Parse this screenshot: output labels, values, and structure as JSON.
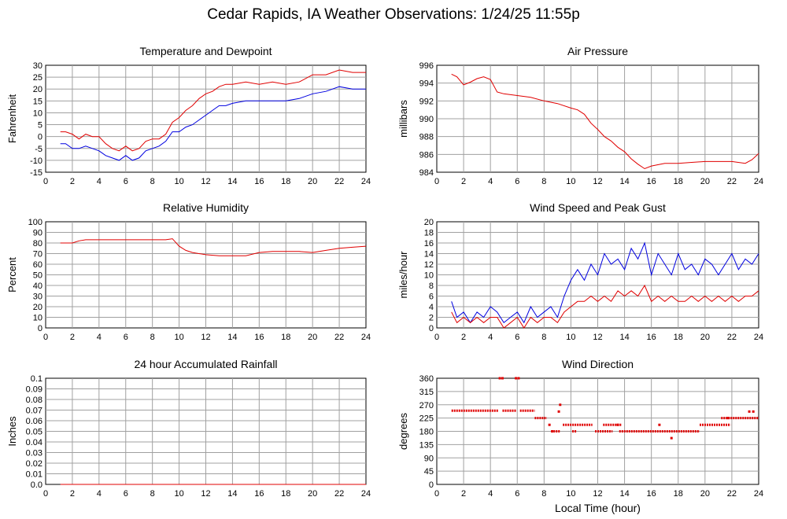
{
  "page": {
    "title": "Cedar Rapids, IA Weather Observations: 1/24/25 11:55p"
  },
  "chart_data": [
    {
      "type": "line",
      "title": "Temperature and Dewpoint",
      "ylabel": "Fahrenheit",
      "xlabel": "",
      "xlim": [
        0,
        24
      ],
      "ylim": [
        -15,
        30
      ],
      "xticks": [
        0,
        2,
        4,
        6,
        8,
        10,
        12,
        14,
        16,
        18,
        20,
        22,
        24
      ],
      "yticks": [
        -15,
        -10,
        -5,
        0,
        5,
        10,
        15,
        20,
        25,
        30
      ],
      "grid": true,
      "series": [
        {
          "color": "#e00000",
          "x": [
            1.1,
            1.5,
            2.0,
            2.5,
            3.0,
            3.5,
            4.0,
            4.5,
            5.0,
            5.5,
            6.0,
            6.5,
            7.0,
            7.5,
            8.0,
            8.5,
            9.0,
            9.5,
            10.0,
            10.5,
            11.0,
            11.5,
            12.0,
            12.5,
            13.0,
            13.5,
            14.0,
            15.0,
            16.0,
            17.0,
            18.0,
            19.0,
            20.0,
            21.0,
            22.0,
            23.0,
            24.0
          ],
          "y": [
            2,
            2,
            1,
            -1,
            1,
            0,
            0,
            -3,
            -5,
            -6,
            -4,
            -6,
            -5,
            -2,
            -1,
            -1,
            1,
            6,
            8,
            11,
            13,
            16,
            18,
            19,
            21,
            22,
            22,
            23,
            22,
            23,
            22,
            23,
            26,
            26,
            28,
            27,
            27
          ]
        },
        {
          "color": "#0000e0",
          "x": [
            1.1,
            1.5,
            2.0,
            2.5,
            3.0,
            3.5,
            4.0,
            4.5,
            5.0,
            5.5,
            6.0,
            6.5,
            7.0,
            7.5,
            8.0,
            8.5,
            9.0,
            9.5,
            10.0,
            10.5,
            11.0,
            11.5,
            12.0,
            12.5,
            13.0,
            13.5,
            14.0,
            15.0,
            16.0,
            17.0,
            18.0,
            19.0,
            20.0,
            21.0,
            22.0,
            23.0,
            24.0
          ],
          "y": [
            -3,
            -3,
            -5,
            -5,
            -4,
            -5,
            -6,
            -8,
            -9,
            -10,
            -8,
            -10,
            -9,
            -6,
            -5,
            -4,
            -2,
            2,
            2,
            4,
            5,
            7,
            9,
            11,
            13,
            13,
            14,
            15,
            15,
            15,
            15,
            16,
            18,
            19,
            21,
            20,
            20
          ]
        }
      ]
    },
    {
      "type": "line",
      "title": "Air Pressure",
      "ylabel": "millibars",
      "xlabel": "",
      "xlim": [
        0,
        24
      ],
      "ylim": [
        984,
        996
      ],
      "xticks": [
        0,
        2,
        4,
        6,
        8,
        10,
        12,
        14,
        16,
        18,
        20,
        22,
        24
      ],
      "yticks": [
        984,
        986,
        988,
        990,
        992,
        994,
        996
      ],
      "grid": true,
      "series": [
        {
          "color": "#e00000",
          "x": [
            1.1,
            1.5,
            2.0,
            2.5,
            3.0,
            3.5,
            4.0,
            4.5,
            5.0,
            6.0,
            7.0,
            8.0,
            9.0,
            10.0,
            10.5,
            11.0,
            11.5,
            12.0,
            12.5,
            13.0,
            13.5,
            14.0,
            14.5,
            15.0,
            15.5,
            16.0,
            17.0,
            18.0,
            19.0,
            20.0,
            21.0,
            22.0,
            23.0,
            23.5,
            24.0
          ],
          "y": [
            995.0,
            994.7,
            993.8,
            994.1,
            994.5,
            994.7,
            994.4,
            993.0,
            992.8,
            992.6,
            992.4,
            992.0,
            991.7,
            991.2,
            991.0,
            990.5,
            989.5,
            988.8,
            988.0,
            987.5,
            986.8,
            986.3,
            985.5,
            984.9,
            984.4,
            984.7,
            985.0,
            985.0,
            985.1,
            985.2,
            985.2,
            985.2,
            985.0,
            985.4,
            986.1
          ]
        }
      ]
    },
    {
      "type": "line",
      "title": "Relative Humidity",
      "ylabel": "Percent",
      "xlabel": "",
      "xlim": [
        0,
        24
      ],
      "ylim": [
        0,
        100
      ],
      "xticks": [
        0,
        2,
        4,
        6,
        8,
        10,
        12,
        14,
        16,
        18,
        20,
        22,
        24
      ],
      "yticks": [
        0,
        10,
        20,
        30,
        40,
        50,
        60,
        70,
        80,
        90,
        100
      ],
      "grid": true,
      "series": [
        {
          "color": "#e00000",
          "x": [
            1.1,
            2.0,
            2.5,
            3.0,
            4.0,
            5.0,
            6.0,
            7.0,
            8.0,
            9.0,
            9.5,
            10.0,
            10.5,
            11.0,
            12.0,
            13.0,
            14.0,
            15.0,
            16.0,
            17.0,
            18.0,
            19.0,
            20.0,
            21.0,
            22.0,
            23.0,
            24.0
          ],
          "y": [
            80,
            80,
            82,
            83,
            83,
            83,
            83,
            83,
            83,
            83,
            84,
            77,
            73,
            71,
            69,
            68,
            68,
            68,
            71,
            72,
            72,
            72,
            71,
            73,
            75,
            76,
            77
          ]
        }
      ]
    },
    {
      "type": "line",
      "title": "Wind Speed and Peak Gust",
      "ylabel": "miles/hour",
      "xlabel": "",
      "xlim": [
        0,
        24
      ],
      "ylim": [
        0,
        20
      ],
      "xticks": [
        0,
        2,
        4,
        6,
        8,
        10,
        12,
        14,
        16,
        18,
        20,
        22,
        24
      ],
      "yticks": [
        0,
        2,
        4,
        6,
        8,
        10,
        12,
        14,
        16,
        18,
        20
      ],
      "grid": true,
      "series": [
        {
          "color": "#0000e0",
          "x": [
            1.1,
            1.5,
            2.0,
            2.5,
            3.0,
            3.5,
            4.0,
            4.5,
            5.0,
            5.5,
            6.0,
            6.5,
            7.0,
            7.5,
            8.0,
            8.5,
            9.0,
            9.5,
            10.0,
            10.5,
            11.0,
            11.5,
            12.0,
            12.5,
            13.0,
            13.5,
            14.0,
            14.5,
            15.0,
            15.5,
            16.0,
            16.5,
            17.0,
            17.5,
            18.0,
            18.5,
            19.0,
            19.5,
            20.0,
            20.5,
            21.0,
            21.5,
            22.0,
            22.5,
            23.0,
            23.5,
            24.0
          ],
          "y": [
            5,
            2,
            3,
            1,
            3,
            2,
            4,
            3,
            1,
            2,
            3,
            1,
            4,
            2,
            3,
            4,
            2,
            6,
            9,
            11,
            9,
            12,
            10,
            14,
            12,
            13,
            11,
            15,
            13,
            16,
            10,
            14,
            12,
            10,
            14,
            11,
            12,
            10,
            13,
            12,
            10,
            12,
            14,
            11,
            13,
            12,
            14
          ]
        },
        {
          "color": "#e00000",
          "x": [
            1.1,
            1.5,
            2.0,
            2.5,
            3.0,
            3.5,
            4.0,
            4.5,
            5.0,
            5.5,
            6.0,
            6.5,
            7.0,
            7.5,
            8.0,
            8.5,
            9.0,
            9.5,
            10.0,
            10.5,
            11.0,
            11.5,
            12.0,
            12.5,
            13.0,
            13.5,
            14.0,
            14.5,
            15.0,
            15.5,
            16.0,
            16.5,
            17.0,
            17.5,
            18.0,
            18.5,
            19.0,
            19.5,
            20.0,
            20.5,
            21.0,
            21.5,
            22.0,
            22.5,
            23.0,
            23.5,
            24.0
          ],
          "y": [
            3,
            1,
            2,
            1,
            2,
            1,
            2,
            2,
            0,
            1,
            2,
            0,
            2,
            1,
            2,
            2,
            1,
            3,
            4,
            5,
            5,
            6,
            5,
            6,
            5,
            7,
            6,
            7,
            6,
            8,
            5,
            6,
            5,
            6,
            5,
            5,
            6,
            5,
            6,
            5,
            6,
            5,
            6,
            5,
            6,
            6,
            7
          ]
        }
      ]
    },
    {
      "type": "line",
      "title": "24 hour Accumulated Rainfall",
      "ylabel": "Inches",
      "xlabel": "",
      "xlim": [
        0,
        24
      ],
      "ylim": [
        0,
        0.1
      ],
      "xticks": [
        0,
        2,
        4,
        6,
        8,
        10,
        12,
        14,
        16,
        18,
        20,
        22,
        24
      ],
      "yticks": [
        "0.0",
        "0.01",
        "0.02",
        "0.03",
        "0.04",
        "0.05",
        "0.06",
        "0.07",
        "0.08",
        "0.09",
        "0.1"
      ],
      "grid": true,
      "series": [
        {
          "color": "#e00000",
          "x": [
            1.1,
            24.0
          ],
          "y": [
            0,
            0
          ]
        }
      ]
    },
    {
      "type": "scatter",
      "title": "Wind Direction",
      "ylabel": "degrees",
      "xlabel": "Local Time (hour)",
      "xlim": [
        0,
        24
      ],
      "ylim": [
        0,
        360
      ],
      "xticks": [
        0,
        2,
        4,
        6,
        8,
        10,
        12,
        14,
        16,
        18,
        20,
        22,
        24
      ],
      "yticks": [
        0,
        45,
        90,
        135,
        180,
        225,
        270,
        315,
        360
      ],
      "grid": true,
      "series": [
        {
          "color": "#e00000",
          "segments": [
            {
              "x0": 1.1,
              "x1": 4.6,
              "y": 250
            },
            {
              "x0": 4.9,
              "x1": 5.9,
              "y": 250
            },
            {
              "x0": 6.2,
              "x1": 7.3,
              "y": 250
            },
            {
              "x0": 7.3,
              "x1": 8.2,
              "y": 225
            },
            {
              "x0": 8.7,
              "x1": 9.2,
              "y": 180
            },
            {
              "x0": 9.4,
              "x1": 11.6,
              "y": 202
            },
            {
              "x0": 10.1,
              "x1": 10.4,
              "y": 180
            },
            {
              "x0": 11.8,
              "x1": 13.1,
              "y": 180
            },
            {
              "x0": 13.6,
              "x1": 19.6,
              "y": 180
            },
            {
              "x0": 12.4,
              "x1": 13.8,
              "y": 202
            },
            {
              "x0": 19.6,
              "x1": 21.9,
              "y": 202
            },
            {
              "x0": 21.2,
              "x1": 24.0,
              "y": 225
            }
          ],
          "points": [
            [
              4.7,
              360
            ],
            [
              4.9,
              360
            ],
            [
              5.9,
              360
            ],
            [
              6.1,
              360
            ],
            [
              8.4,
              202
            ],
            [
              8.6,
              180
            ],
            [
              9.2,
              270
            ],
            [
              9.1,
              247
            ],
            [
              13.5,
              202
            ],
            [
              17.5,
              157
            ],
            [
              16.6,
              202
            ],
            [
              23.3,
              247
            ],
            [
              23.6,
              247
            ],
            [
              21.7,
              225
            ]
          ]
        }
      ]
    }
  ]
}
